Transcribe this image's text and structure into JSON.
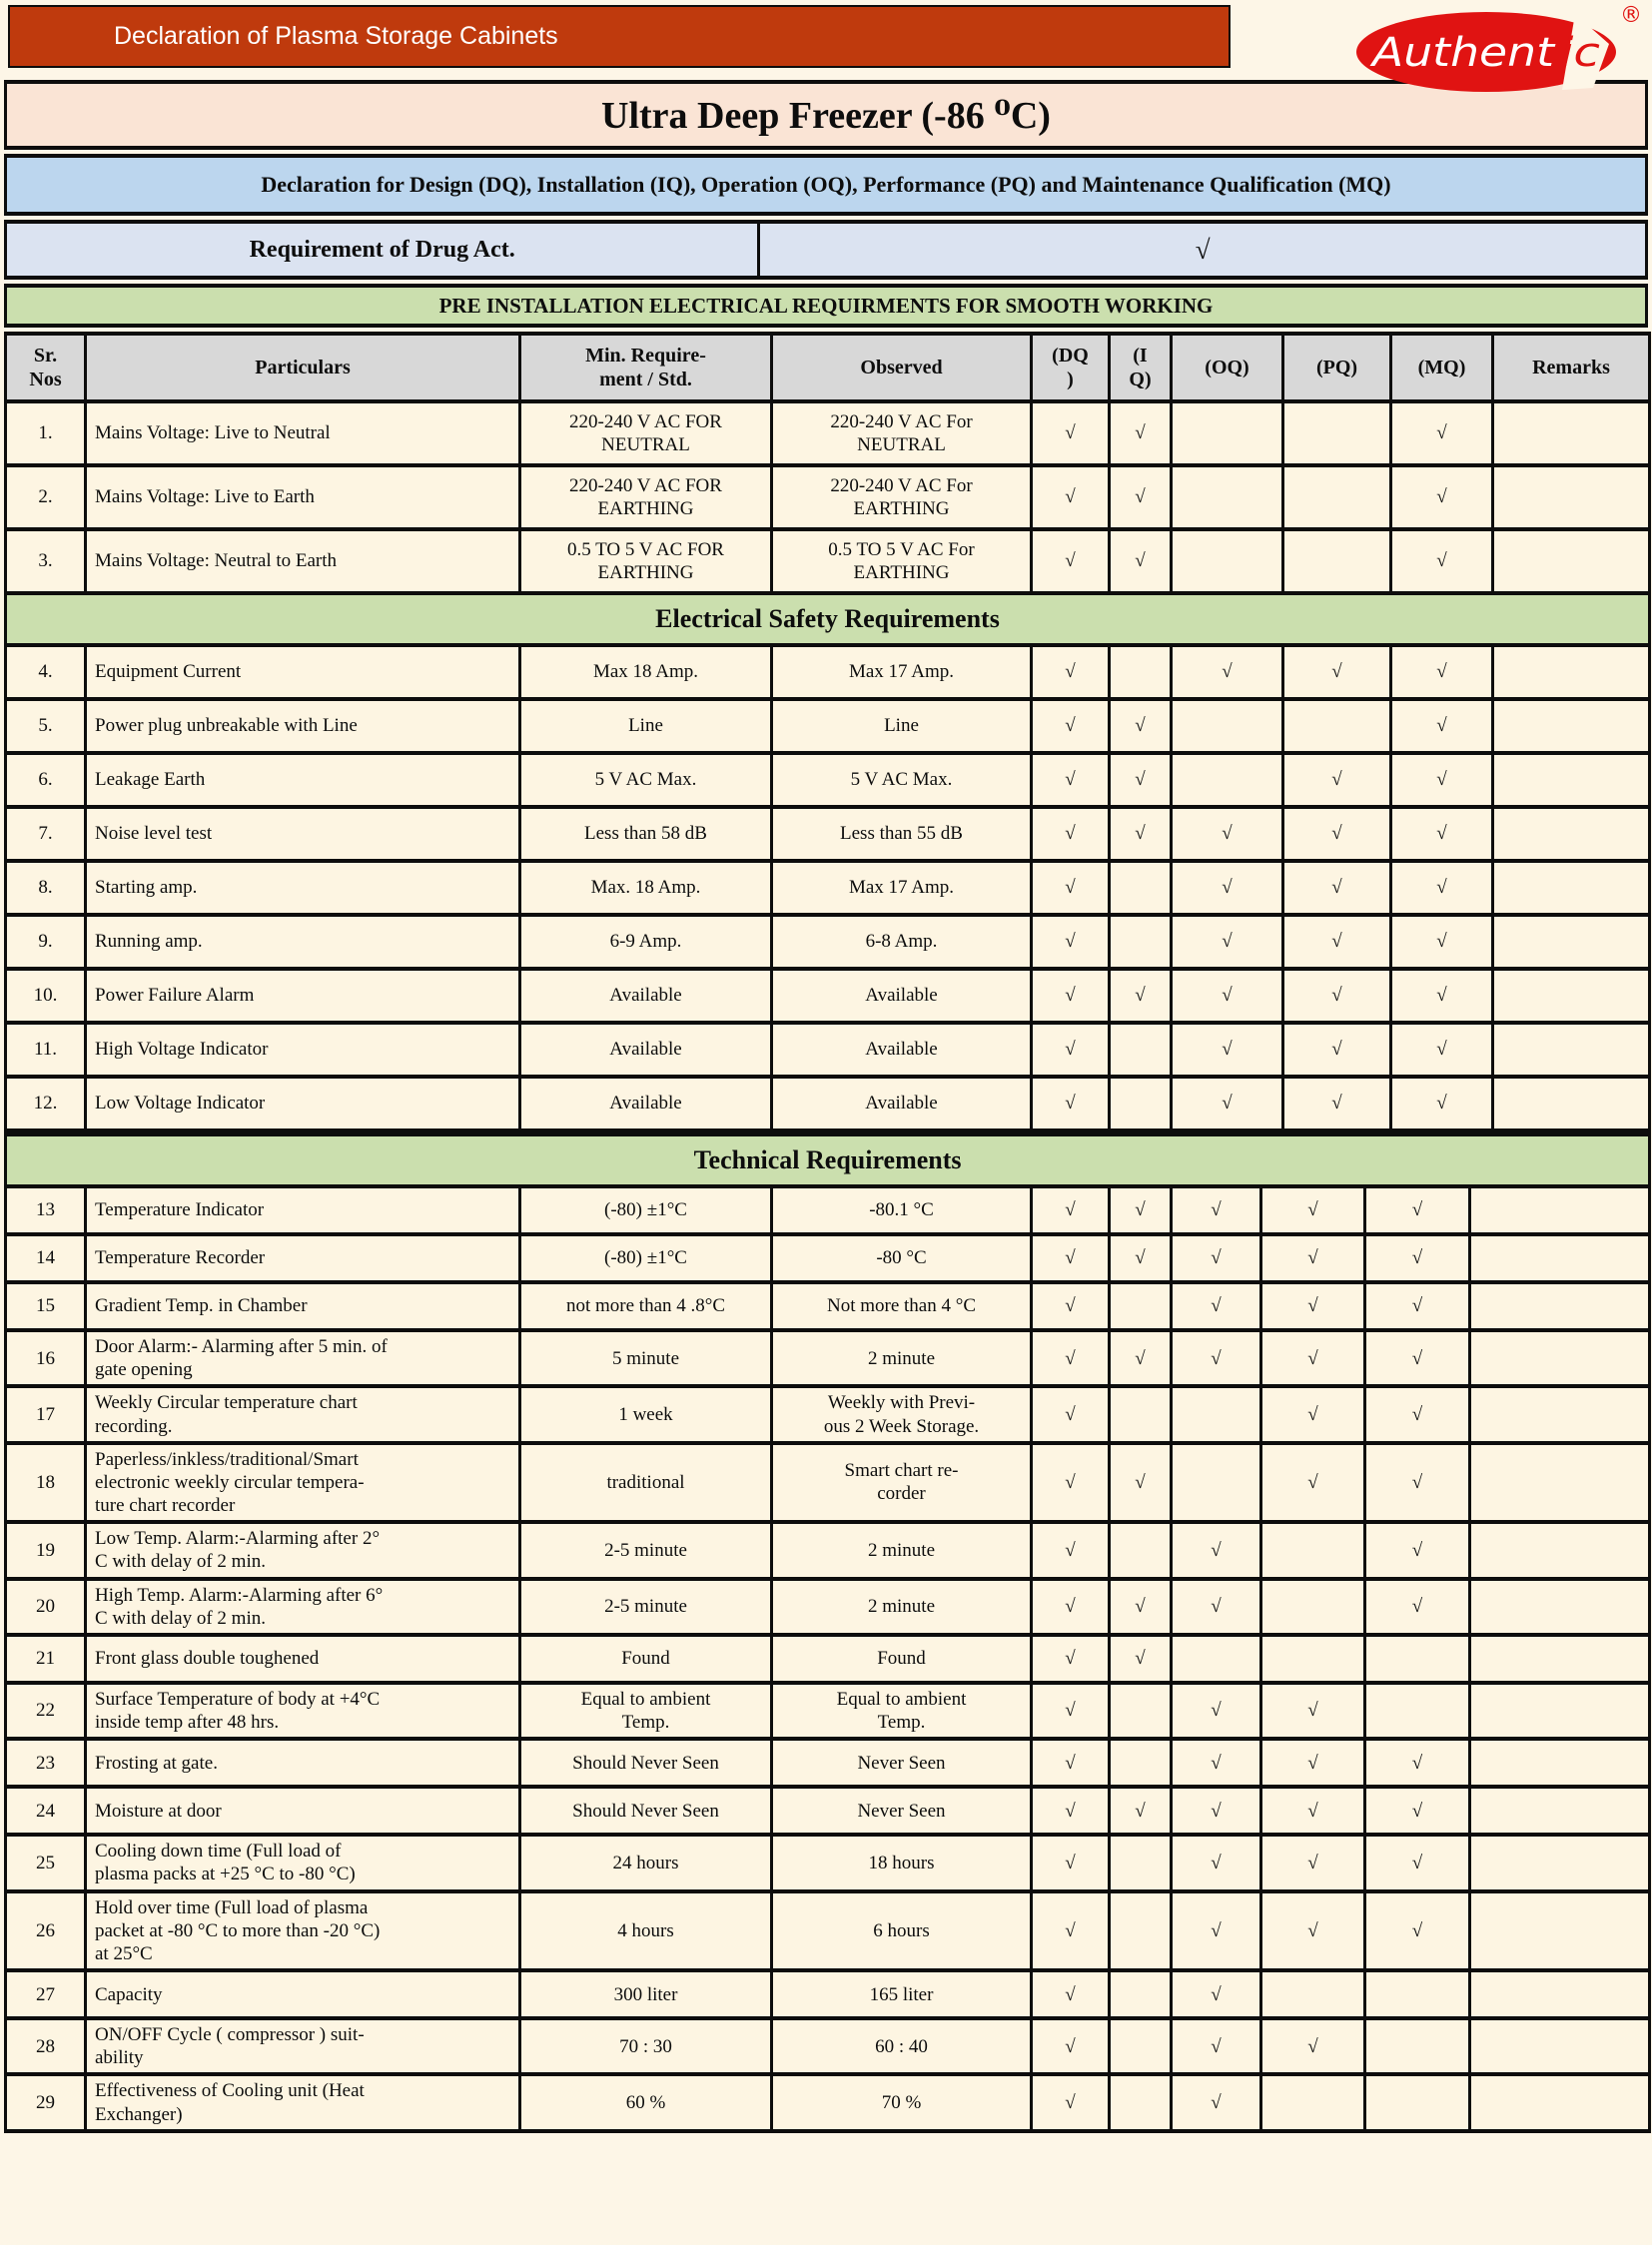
{
  "banner": {
    "text": "Declaration of Plasma Storage Cabinets"
  },
  "logo": {
    "name": "Authentic",
    "registered": "®"
  },
  "product_title": "Ultra Deep Freezer (-86 ⁰C)",
  "declaration_line": "Declaration for Design (DQ), Installation (IQ), Operation (OQ), Performance (PQ) and Maintenance Qualification (MQ)",
  "drug_act": {
    "label": "Requirement of Drug Act.",
    "check": "√"
  },
  "section_headers": {
    "pre_installation": "PRE INSTALLATION ELECTRICAL REQUIRMENTS FOR SMOOTH WORKING",
    "electrical_safety": "Electrical Safety Requirements",
    "technical": "Technical Requirements"
  },
  "colors": {
    "banner_red": "#bf3a0d",
    "logo_red": "#e01312",
    "title_peach": "#fae4d5",
    "declaration_blue": "#bcd6ee",
    "drug_act_blue": "#dbe3f1",
    "section_green": "#cbdfae",
    "header_gray": "#d8d8d8",
    "cell_cream": "#fdf5e2"
  },
  "table": {
    "columns": [
      "Sr.\nNos",
      "Particulars",
      "Min. Require-\nment / Std.",
      "Observed",
      "(DQ\n)",
      "(I\nQ)",
      "(OQ)",
      "(PQ)",
      "(MQ)",
      "Remarks"
    ],
    "rows_pre": [
      {
        "sr": "1.",
        "particulars": "Mains Voltage: Live to Neutral",
        "min": "220-240 V AC FOR\nNEUTRAL",
        "obs": "220-240 V AC For\nNEUTRAL",
        "dq": "√",
        "iq": "√",
        "oq": "",
        "pq": "",
        "mq": "√",
        "remarks": ""
      },
      {
        "sr": "2.",
        "particulars": "Mains Voltage: Live to Earth",
        "min": "220-240 V AC FOR\nEARTHING",
        "obs": "220-240 V AC For\nEARTHING",
        "dq": "√",
        "iq": "√",
        "oq": "",
        "pq": "",
        "mq": "√",
        "remarks": ""
      },
      {
        "sr": "3.",
        "particulars": "Mains Voltage: Neutral to Earth",
        "min": "0.5 TO 5 V AC FOR\nEARTHING",
        "obs": "0.5 TO 5 V AC For\nEARTHING",
        "dq": "√",
        "iq": "√",
        "oq": "",
        "pq": "",
        "mq": "√",
        "remarks": ""
      }
    ],
    "rows_electrical": [
      {
        "sr": "4.",
        "particulars": "Equipment Current",
        "min": "Max 18 Amp.",
        "obs": "Max 17 Amp.",
        "dq": "√",
        "iq": "",
        "oq": "√",
        "pq": "√",
        "mq": "√",
        "remarks": ""
      },
      {
        "sr": "5.",
        "particulars": "Power plug unbreakable with Line",
        "min": "Line",
        "obs": "Line",
        "dq": "√",
        "iq": "√",
        "oq": "",
        "pq": "",
        "mq": "√",
        "remarks": ""
      },
      {
        "sr": "6.",
        "particulars": "Leakage Earth",
        "min": "5 V AC Max.",
        "obs": "5 V AC Max.",
        "dq": "√",
        "iq": "√",
        "oq": "",
        "pq": "√",
        "mq": "√",
        "remarks": ""
      },
      {
        "sr": "7.",
        "particulars": "Noise level test",
        "min": "Less than 58 dB",
        "obs": "Less than 55 dB",
        "dq": "√",
        "iq": "√",
        "oq": "√",
        "pq": "√",
        "mq": "√",
        "remarks": ""
      },
      {
        "sr": "8.",
        "particulars": "Starting amp.",
        "min": "Max. 18 Amp.",
        "obs": "Max 17 Amp.",
        "dq": "√",
        "iq": "",
        "oq": "√",
        "pq": "√",
        "mq": "√",
        "remarks": ""
      },
      {
        "sr": "9.",
        "particulars": "Running amp.",
        "min": "6-9 Amp.",
        "obs": "6-8 Amp.",
        "dq": "√",
        "iq": "",
        "oq": "√",
        "pq": "√",
        "mq": "√",
        "remarks": ""
      },
      {
        "sr": "10.",
        "particulars": "Power Failure Alarm",
        "min": "Available",
        "obs": "Available",
        "dq": "√",
        "iq": "√",
        "oq": "√",
        "pq": "√",
        "mq": "√",
        "remarks": ""
      },
      {
        "sr": "11.",
        "particulars": "High Voltage Indicator",
        "min": "Available",
        "obs": "Available",
        "dq": "√",
        "iq": "",
        "oq": "√",
        "pq": "√",
        "mq": "√",
        "remarks": ""
      },
      {
        "sr": "12.",
        "particulars": "Low Voltage Indicator",
        "min": "Available",
        "obs": "Available",
        "dq": "√",
        "iq": "",
        "oq": "√",
        "pq": "√",
        "mq": "√",
        "remarks": ""
      }
    ],
    "rows_technical": [
      {
        "sr": "13",
        "particulars": "Temperature Indicator",
        "min": "(-80) ±1°C",
        "obs": "-80.1 °C",
        "dq": "√",
        "iq": "√",
        "oq": "√",
        "pq": "√",
        "mq": "√",
        "remarks": ""
      },
      {
        "sr": "14",
        "particulars": "Temperature Recorder",
        "min": "(-80) ±1°C",
        "obs": "-80 °C",
        "dq": "√",
        "iq": "√",
        "oq": "√",
        "pq": "√",
        "mq": "√",
        "remarks": ""
      },
      {
        "sr": "15",
        "particulars": "Gradient Temp. in Chamber",
        "min": "not more than 4 .8°C",
        "obs": "Not more than 4 °C",
        "dq": "√",
        "iq": "",
        "oq": "√",
        "pq": "√",
        "mq": "√",
        "remarks": ""
      },
      {
        "sr": "16",
        "particulars": "Door Alarm:- Alarming after 5 min. of\ngate opening",
        "min": "5 minute",
        "obs": "2 minute",
        "dq": "√",
        "iq": "√",
        "oq": "√",
        "pq": "√",
        "mq": "√",
        "remarks": ""
      },
      {
        "sr": "17",
        "particulars": "Weekly Circular temperature chart\nrecording.",
        "min": "1 week",
        "obs": "Weekly with Previ-\nous 2 Week Storage.",
        "dq": "√",
        "iq": "",
        "oq": "",
        "pq": "√",
        "mq": "√",
        "remarks": ""
      },
      {
        "sr": "18",
        "particulars": "Paperless/inkless/traditional/Smart\nelectronic weekly circular tempera-\nture chart  recorder",
        "min": "traditional",
        "obs": "Smart chart  re-\ncorder",
        "dq": "√",
        "iq": "√",
        "oq": "",
        "pq": "√",
        "mq": "√",
        "remarks": ""
      },
      {
        "sr": "19",
        "particulars": "Low Temp. Alarm:-Alarming after 2°\nC with delay of 2 min.",
        "min": "2-5 minute",
        "obs": "2 minute",
        "dq": "√",
        "iq": "",
        "oq": "√",
        "pq": "",
        "mq": "√",
        "remarks": ""
      },
      {
        "sr": "20",
        "particulars": "High Temp. Alarm:-Alarming after 6°\nC with delay of 2 min.",
        "min": "2-5 minute",
        "obs": "2 minute",
        "dq": "√",
        "iq": "√",
        "oq": "√",
        "pq": "",
        "mq": "√",
        "remarks": ""
      },
      {
        "sr": "21",
        "particulars": "Front glass double toughened",
        "min": "Found",
        "obs": "Found",
        "dq": "√",
        "iq": "√",
        "oq": "",
        "pq": "",
        "mq": "",
        "remarks": ""
      },
      {
        "sr": "22",
        "particulars": "Surface Temperature of body at +4°C\ninside temp after 48 hrs.",
        "min": "Equal to ambient\nTemp.",
        "obs": "Equal to ambient\nTemp.",
        "dq": "√",
        "iq": "",
        "oq": "√",
        "pq": "√",
        "mq": "",
        "remarks": ""
      },
      {
        "sr": "23",
        "particulars": "Frosting at gate.",
        "min": "Should Never Seen",
        "obs": "Never Seen",
        "dq": "√",
        "iq": "",
        "oq": "√",
        "pq": "√",
        "mq": "√",
        "remarks": ""
      },
      {
        "sr": "24",
        "particulars": "Moisture at door",
        "min": "Should Never Seen",
        "obs": "Never Seen",
        "dq": "√",
        "iq": "√",
        "oq": "√",
        "pq": "√",
        "mq": "√",
        "remarks": ""
      },
      {
        "sr": "25",
        "particulars": "Cooling down time (Full load of\nplasma packs at +25 °C to -80 °C)",
        "min": "24 hours",
        "obs": "18 hours",
        "dq": "√",
        "iq": "",
        "oq": "√",
        "pq": "√",
        "mq": "√",
        "remarks": ""
      },
      {
        "sr": "26",
        "particulars": "Hold over time (Full load of plasma\npacket at -80 °C to more than -20 °C)\nat 25°C",
        "min": "4 hours",
        "obs": "6 hours",
        "dq": "√",
        "iq": "",
        "oq": "√",
        "pq": "√",
        "mq": "√",
        "remarks": ""
      },
      {
        "sr": "27",
        "particulars": "Capacity",
        "min": "300 liter",
        "obs": "165 liter",
        "dq": "√",
        "iq": "",
        "oq": "√",
        "pq": "",
        "mq": "",
        "remarks": ""
      },
      {
        "sr": "28",
        "particulars": "ON/OFF Cycle ( compressor ) suit-\nability",
        "min": "70 : 30",
        "obs": "60 : 40",
        "dq": "√",
        "iq": "",
        "oq": "√",
        "pq": "√",
        "mq": "",
        "remarks": ""
      },
      {
        "sr": "29",
        "particulars": "Effectiveness of Cooling unit (Heat\nExchanger)",
        "min": "60 %",
        "obs": "70 %",
        "dq": "√",
        "iq": "",
        "oq": "√",
        "pq": "",
        "mq": "",
        "remarks": ""
      }
    ]
  }
}
